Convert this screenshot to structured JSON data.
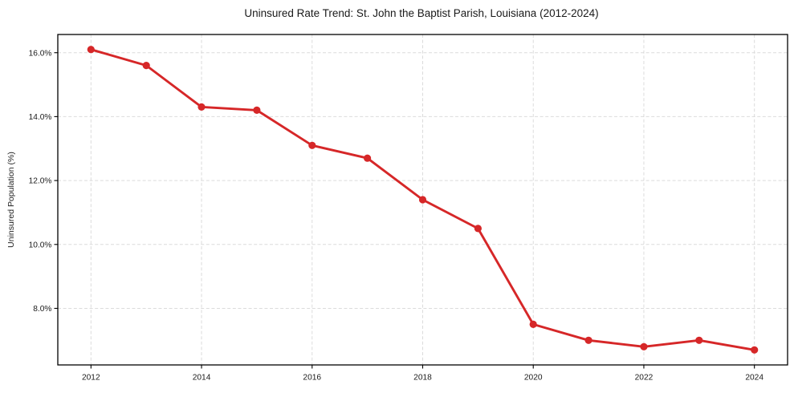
{
  "chart_data": {
    "type": "line",
    "title": "Uninsured Rate Trend: St. John the Baptist Parish, Louisiana (2012-2024)",
    "xlabel": "",
    "ylabel": "Uninsured Population (%)",
    "x": [
      2012,
      2013,
      2014,
      2015,
      2016,
      2017,
      2018,
      2019,
      2020,
      2021,
      2022,
      2023,
      2024
    ],
    "series": [
      {
        "name": "Uninsured rate",
        "values": [
          16.1,
          15.6,
          14.3,
          14.2,
          13.1,
          12.7,
          11.4,
          10.5,
          7.5,
          7.0,
          6.8,
          7.0,
          6.7
        ],
        "color": "#d62728",
        "marker": "circle",
        "marker_radius": 4.6,
        "line_width": 2.9
      }
    ],
    "xticks": [
      2012,
      2014,
      2016,
      2018,
      2020,
      2022,
      2024
    ],
    "xtick_labels": [
      "2012",
      "2014",
      "2016",
      "2018",
      "2020",
      "2022",
      "2024"
    ],
    "yticks": [
      8,
      10,
      12,
      14,
      16
    ],
    "ytick_labels": [
      "8.0%",
      "10.0%",
      "12.0%",
      "14.0%",
      "16.0%"
    ],
    "xlim": [
      2011.4,
      2024.6
    ],
    "ylim": [
      6.23,
      16.57
    ],
    "grid": "dashed",
    "legend": "none",
    "colors": {
      "line": "#d62728",
      "grid": "#d3d3d3",
      "axis": "#000000",
      "text": "#1a1a1a",
      "background": "#ffffff"
    }
  }
}
